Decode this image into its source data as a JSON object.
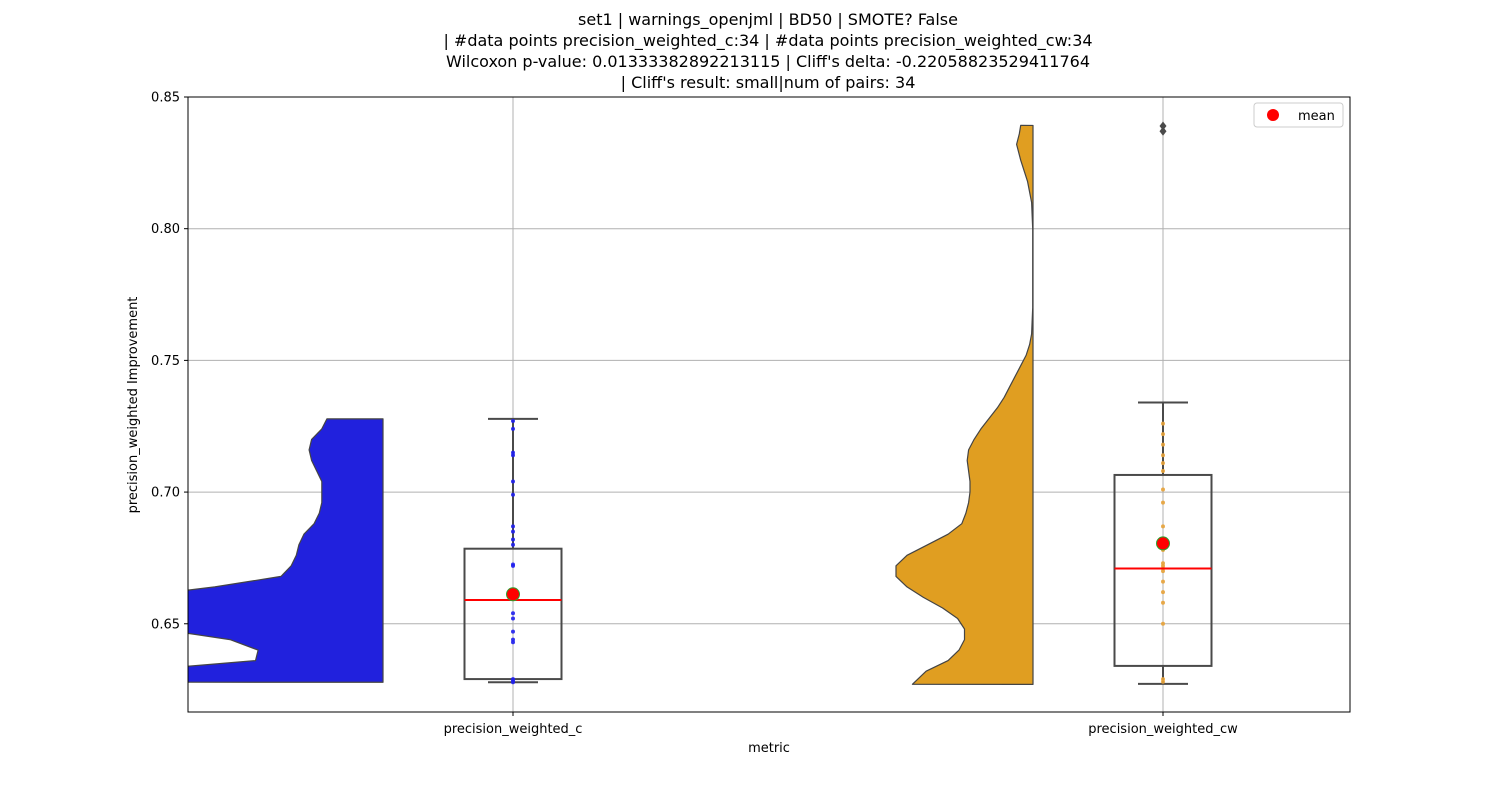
{
  "chart_data": {
    "type": "violin-box",
    "title_lines": [
      "set1 | warnings_openjml | BD50 | SMOTE? False",
      "| #data points precision_weighted_c:34 | #data points precision_weighted_cw:34",
      "Wilcoxon p-value: 0.01333382892213115 | Cliff's delta: -0.22058823529411764",
      "| Cliff's result: small|num of pairs: 34"
    ],
    "xlabel": "metric",
    "ylabel": "precision_weighted Improvement",
    "ylim": [
      0.6165,
      0.85
    ],
    "yticks": [
      0.65,
      0.7,
      0.75,
      0.8,
      0.85
    ],
    "ytick_labels": [
      "0.65",
      "0.70",
      "0.75",
      "0.80",
      "0.85"
    ],
    "grid": true,
    "legend": {
      "position": "top-right",
      "entries": [
        {
          "label": "mean",
          "color": "#ff0000"
        }
      ]
    },
    "categories": [
      "precision_weighted_c",
      "precision_weighted_cw"
    ],
    "series": [
      {
        "category": "precision_weighted_c",
        "violin_color": "#2121dd",
        "point_color": "#2020ee",
        "violin_profile": [
          [
            0.6278,
            1.0
          ],
          [
            0.632,
            1.0
          ],
          [
            0.636,
            0.5
          ],
          [
            0.64,
            0.49
          ],
          [
            0.644,
            0.6
          ],
          [
            0.648,
            0.88
          ],
          [
            0.652,
            1.0
          ],
          [
            0.656,
            1.0
          ],
          [
            0.66,
            1.0
          ],
          [
            0.664,
            0.66
          ],
          [
            0.668,
            0.4
          ],
          [
            0.672,
            0.36
          ],
          [
            0.676,
            0.34
          ],
          [
            0.68,
            0.33
          ],
          [
            0.684,
            0.31
          ],
          [
            0.688,
            0.27
          ],
          [
            0.692,
            0.25
          ],
          [
            0.696,
            0.24
          ],
          [
            0.7,
            0.24
          ],
          [
            0.704,
            0.24
          ],
          [
            0.708,
            0.26
          ],
          [
            0.712,
            0.28
          ],
          [
            0.716,
            0.29
          ],
          [
            0.72,
            0.28
          ],
          [
            0.724,
            0.24
          ],
          [
            0.7278,
            0.22
          ]
        ],
        "box": {
          "q1": 0.629,
          "median": 0.659,
          "q3": 0.6785,
          "whisker_low": 0.6278,
          "whisker_high": 0.7278
        },
        "mean": 0.6612,
        "outliers": [],
        "points": [
          0.6278,
          0.6285,
          0.629,
          0.643,
          0.644,
          0.647,
          0.652,
          0.654,
          0.66,
          0.661,
          0.672,
          0.6725,
          0.68,
          0.682,
          0.685,
          0.687,
          0.699,
          0.704,
          0.714,
          0.715,
          0.724,
          0.727
        ]
      },
      {
        "category": "precision_weighted_cw",
        "violin_color": "#e09e21",
        "point_color": "#e8a33a",
        "violin_profile": [
          [
            0.627,
            0.88
          ],
          [
            0.632,
            0.78
          ],
          [
            0.636,
            0.62
          ],
          [
            0.64,
            0.54
          ],
          [
            0.644,
            0.5
          ],
          [
            0.648,
            0.5
          ],
          [
            0.652,
            0.55
          ],
          [
            0.656,
            0.66
          ],
          [
            0.66,
            0.8
          ],
          [
            0.664,
            0.92
          ],
          [
            0.668,
            1.0
          ],
          [
            0.672,
            1.0
          ],
          [
            0.676,
            0.92
          ],
          [
            0.68,
            0.77
          ],
          [
            0.684,
            0.62
          ],
          [
            0.688,
            0.52
          ],
          [
            0.692,
            0.49
          ],
          [
            0.696,
            0.47
          ],
          [
            0.7,
            0.46
          ],
          [
            0.704,
            0.46
          ],
          [
            0.708,
            0.47
          ],
          [
            0.712,
            0.48
          ],
          [
            0.716,
            0.47
          ],
          [
            0.72,
            0.43
          ],
          [
            0.724,
            0.38
          ],
          [
            0.728,
            0.32
          ],
          [
            0.732,
            0.26
          ],
          [
            0.736,
            0.21
          ],
          [
            0.74,
            0.17
          ],
          [
            0.744,
            0.13
          ],
          [
            0.748,
            0.09
          ],
          [
            0.752,
            0.05
          ],
          [
            0.756,
            0.025
          ],
          [
            0.76,
            0.01
          ],
          [
            0.77,
            0.002
          ],
          [
            0.8,
            0.002
          ],
          [
            0.81,
            0.01
          ],
          [
            0.818,
            0.04
          ],
          [
            0.826,
            0.09
          ],
          [
            0.832,
            0.12
          ],
          [
            0.836,
            0.1
          ],
          [
            0.8392,
            0.09
          ]
        ],
        "box": {
          "q1": 0.634,
          "median": 0.671,
          "q3": 0.7065,
          "whisker_low": 0.6272,
          "whisker_high": 0.734
        },
        "mean": 0.6805,
        "outliers": [
          0.837,
          0.839
        ],
        "points": [
          0.628,
          0.629,
          0.65,
          0.658,
          0.662,
          0.666,
          0.67,
          0.671,
          0.672,
          0.673,
          0.678,
          0.687,
          0.696,
          0.701,
          0.708,
          0.711,
          0.714,
          0.718,
          0.722,
          0.726
        ]
      }
    ]
  }
}
